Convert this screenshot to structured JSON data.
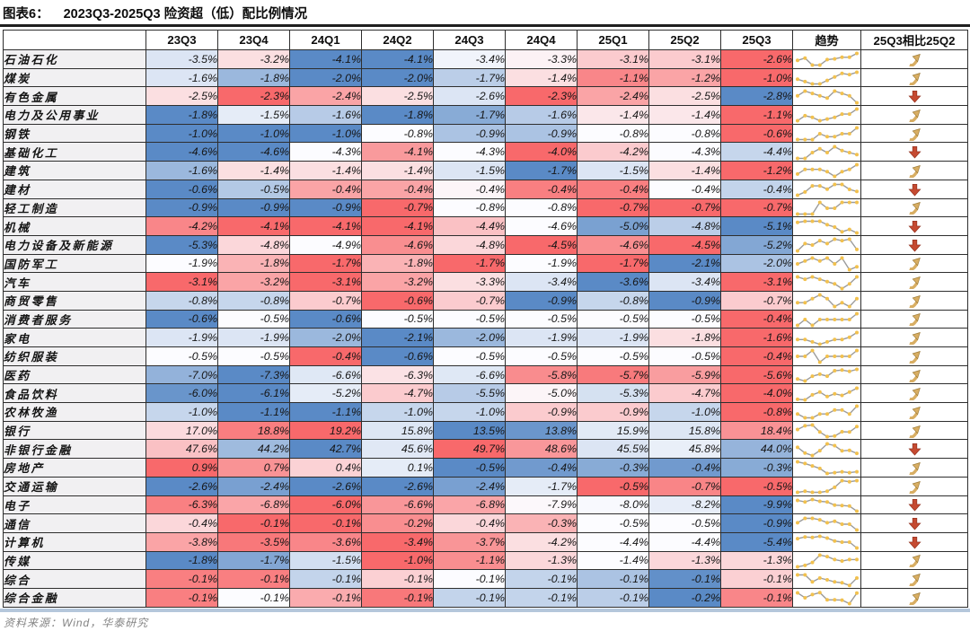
{
  "figure": {
    "label": "图表6：",
    "title": "2023Q3-2025Q3 险资超（低）配比例情况"
  },
  "footer": {
    "source": "资料来源：Wind，华泰研究"
  },
  "colors": {
    "heat_high": "#F8696B",
    "heat_mid": "#FCFCFF",
    "heat_low": "#5A8AC6",
    "up_arrow": "#D8AE63",
    "up_arrow_outline": "#9C7A38",
    "down_arrow": "#C54A31",
    "down_arrow_outline": "#8F2F1D",
    "spark_line": "#9B9B9B",
    "spark_dot": "#F2C14E",
    "rule_top": "#1F1F1F",
    "rule_bottom": "#B5C7DB"
  },
  "chart_data": {
    "type": "heatmap",
    "unit": "%",
    "value_format": "one_decimal_percent",
    "color_scale": "row-normalized diverging (low=blue #5A8AC6, mid=white #FCFCFF, high=red #F8696B)",
    "columns": [
      "23Q3",
      "23Q4",
      "24Q1",
      "24Q2",
      "24Q3",
      "24Q4",
      "25Q1",
      "25Q2",
      "25Q3"
    ],
    "trend_header": "趋势",
    "compare_header": "25Q3相比25Q2",
    "rows": [
      {
        "name": "石油石化",
        "values": [
          -3.5,
          -3.2,
          -4.1,
          -4.1,
          -3.4,
          -3.3,
          -3.1,
          -3.1,
          -2.6
        ],
        "trend": "up"
      },
      {
        "name": "煤炭",
        "values": [
          -1.6,
          -1.8,
          -2.0,
          -2.0,
          -1.7,
          -1.4,
          -1.1,
          -1.2,
          -1.0
        ],
        "trend": "up"
      },
      {
        "name": "有色金属",
        "values": [
          -2.5,
          -2.3,
          -2.4,
          -2.5,
          -2.6,
          -2.3,
          -2.4,
          -2.5,
          -2.8
        ],
        "trend": "down"
      },
      {
        "name": "电力及公用事业",
        "values": [
          -1.8,
          -1.5,
          -1.6,
          -1.8,
          -1.7,
          -1.6,
          -1.4,
          -1.4,
          -1.1
        ],
        "trend": "up"
      },
      {
        "name": "钢铁",
        "values": [
          -1.0,
          -1.0,
          -1.0,
          -0.8,
          -0.9,
          -0.9,
          -0.8,
          -0.8,
          -0.6
        ],
        "trend": "up"
      },
      {
        "name": "基础化工",
        "values": [
          -4.6,
          -4.6,
          -4.3,
          -4.1,
          -4.3,
          -4.0,
          -4.2,
          -4.3,
          -4.4
        ],
        "trend": "down"
      },
      {
        "name": "建筑",
        "values": [
          -1.6,
          -1.4,
          -1.4,
          -1.4,
          -1.5,
          -1.7,
          -1.5,
          -1.4,
          -1.2
        ],
        "trend": "up"
      },
      {
        "name": "建材",
        "values": [
          -0.6,
          -0.5,
          -0.4,
          -0.4,
          -0.4,
          -0.4,
          -0.4,
          -0.4,
          -0.4
        ],
        "trend": "down",
        "tones": [
          -1,
          -0.45,
          0.6,
          0.6,
          0.05,
          0.85,
          0.85,
          0,
          -0.35
        ]
      },
      {
        "name": "轻工制造",
        "values": [
          -0.9,
          -0.9,
          -0.9,
          -0.7,
          -0.8,
          -0.8,
          -0.7,
          -0.7,
          -0.7
        ],
        "trend": "up"
      },
      {
        "name": "机械",
        "values": [
          -4.2,
          -4.1,
          -4.1,
          -4.1,
          -4.4,
          -4.6,
          -5.0,
          -4.8,
          -5.1
        ],
        "trend": "down"
      },
      {
        "name": "电力设备及新能源",
        "values": [
          -5.3,
          -4.8,
          -4.9,
          -4.6,
          -4.8,
          -4.5,
          -4.6,
          -4.5,
          -5.2
        ],
        "trend": "down"
      },
      {
        "name": "国防军工",
        "values": [
          -1.9,
          -1.8,
          -1.7,
          -1.8,
          -1.7,
          -1.9,
          -1.7,
          -2.1,
          -2.0
        ],
        "trend": "up"
      },
      {
        "name": "汽车",
        "values": [
          -3.1,
          -3.2,
          -3.1,
          -3.2,
          -3.3,
          -3.4,
          -3.6,
          -3.4,
          -3.1
        ],
        "trend": "up"
      },
      {
        "name": "商贸零售",
        "values": [
          -0.8,
          -0.8,
          -0.7,
          -0.6,
          -0.7,
          -0.9,
          -0.8,
          -0.9,
          -0.7
        ],
        "trend": "up"
      },
      {
        "name": "消费者服务",
        "values": [
          -0.6,
          -0.5,
          -0.6,
          -0.5,
          -0.5,
          -0.5,
          -0.5,
          -0.5,
          -0.4
        ],
        "trend": "up"
      },
      {
        "name": "家电",
        "values": [
          -1.9,
          -1.9,
          -2.0,
          -2.1,
          -2.0,
          -1.9,
          -1.9,
          -1.8,
          -1.6
        ],
        "trend": "up"
      },
      {
        "name": "纺织服装",
        "values": [
          -0.5,
          -0.5,
          -0.4,
          -0.6,
          -0.5,
          -0.5,
          -0.5,
          -0.5,
          -0.4
        ],
        "trend": "up"
      },
      {
        "name": "医药",
        "values": [
          -7.0,
          -7.3,
          -6.6,
          -6.3,
          -6.6,
          -5.8,
          -5.7,
          -5.9,
          -5.6
        ],
        "trend": "up"
      },
      {
        "name": "食品饮料",
        "values": [
          -6.0,
          -6.1,
          -5.2,
          -4.7,
          -5.5,
          -5.0,
          -5.3,
          -4.7,
          -4.0
        ],
        "trend": "up"
      },
      {
        "name": "农林牧渔",
        "values": [
          -1.0,
          -1.1,
          -1.1,
          -1.0,
          -1.0,
          -0.9,
          -0.9,
          -1.0,
          -0.8
        ],
        "trend": "up"
      },
      {
        "name": "银行",
        "values": [
          17.0,
          18.8,
          19.2,
          15.8,
          13.5,
          13.8,
          15.9,
          15.8,
          18.4
        ],
        "trend": "up"
      },
      {
        "name": "非银行金融",
        "values": [
          47.6,
          44.2,
          42.7,
          45.6,
          49.7,
          48.6,
          45.5,
          45.8,
          44.0
        ],
        "trend": "down"
      },
      {
        "name": "房地产",
        "values": [
          0.9,
          0.7,
          0.4,
          0.1,
          -0.5,
          -0.4,
          -0.3,
          -0.4,
          -0.3
        ],
        "trend": "up"
      },
      {
        "name": "交通运输",
        "values": [
          -2.6,
          -2.4,
          -2.6,
          -2.6,
          -2.4,
          -1.7,
          -0.5,
          -0.7,
          -0.5
        ],
        "trend": "up"
      },
      {
        "name": "电子",
        "values": [
          -6.3,
          -6.8,
          -6.0,
          -6.6,
          -6.8,
          -7.9,
          -8.0,
          -8.2,
          -9.9
        ],
        "trend": "down"
      },
      {
        "name": "通信",
        "values": [
          -0.4,
          -0.1,
          -0.1,
          -0.2,
          -0.4,
          -0.3,
          -0.5,
          -0.5,
          -0.9
        ],
        "trend": "down"
      },
      {
        "name": "计算机",
        "values": [
          -3.8,
          -3.5,
          -3.6,
          -3.4,
          -3.7,
          -4.2,
          -4.4,
          -4.4,
          -5.4
        ],
        "trend": "down"
      },
      {
        "name": "传媒",
        "values": [
          -1.8,
          -1.7,
          -1.5,
          -1.0,
          -1.1,
          -1.3,
          -1.4,
          -1.3,
          -1.3
        ],
        "trend": "up"
      },
      {
        "name": "综合",
        "values": [
          -0.1,
          -0.1,
          -0.1,
          -0.1,
          -0.1,
          -0.1,
          -0.1,
          -0.1,
          -0.1
        ],
        "trend": "up",
        "tones": [
          0.85,
          0.85,
          -0.35,
          0.3,
          0,
          -0.35,
          -0.5,
          -0.95,
          0.3
        ]
      },
      {
        "name": "综合金融",
        "values": [
          -0.1,
          -0.1,
          -0.1,
          -0.1,
          -0.1,
          -0.1,
          -0.1,
          -0.2,
          -0.1
        ],
        "trend": "up",
        "tones": [
          0.85,
          0,
          0.55,
          0.9,
          -0.35,
          -0.35,
          -0.4,
          -1,
          0.8
        ]
      }
    ]
  }
}
